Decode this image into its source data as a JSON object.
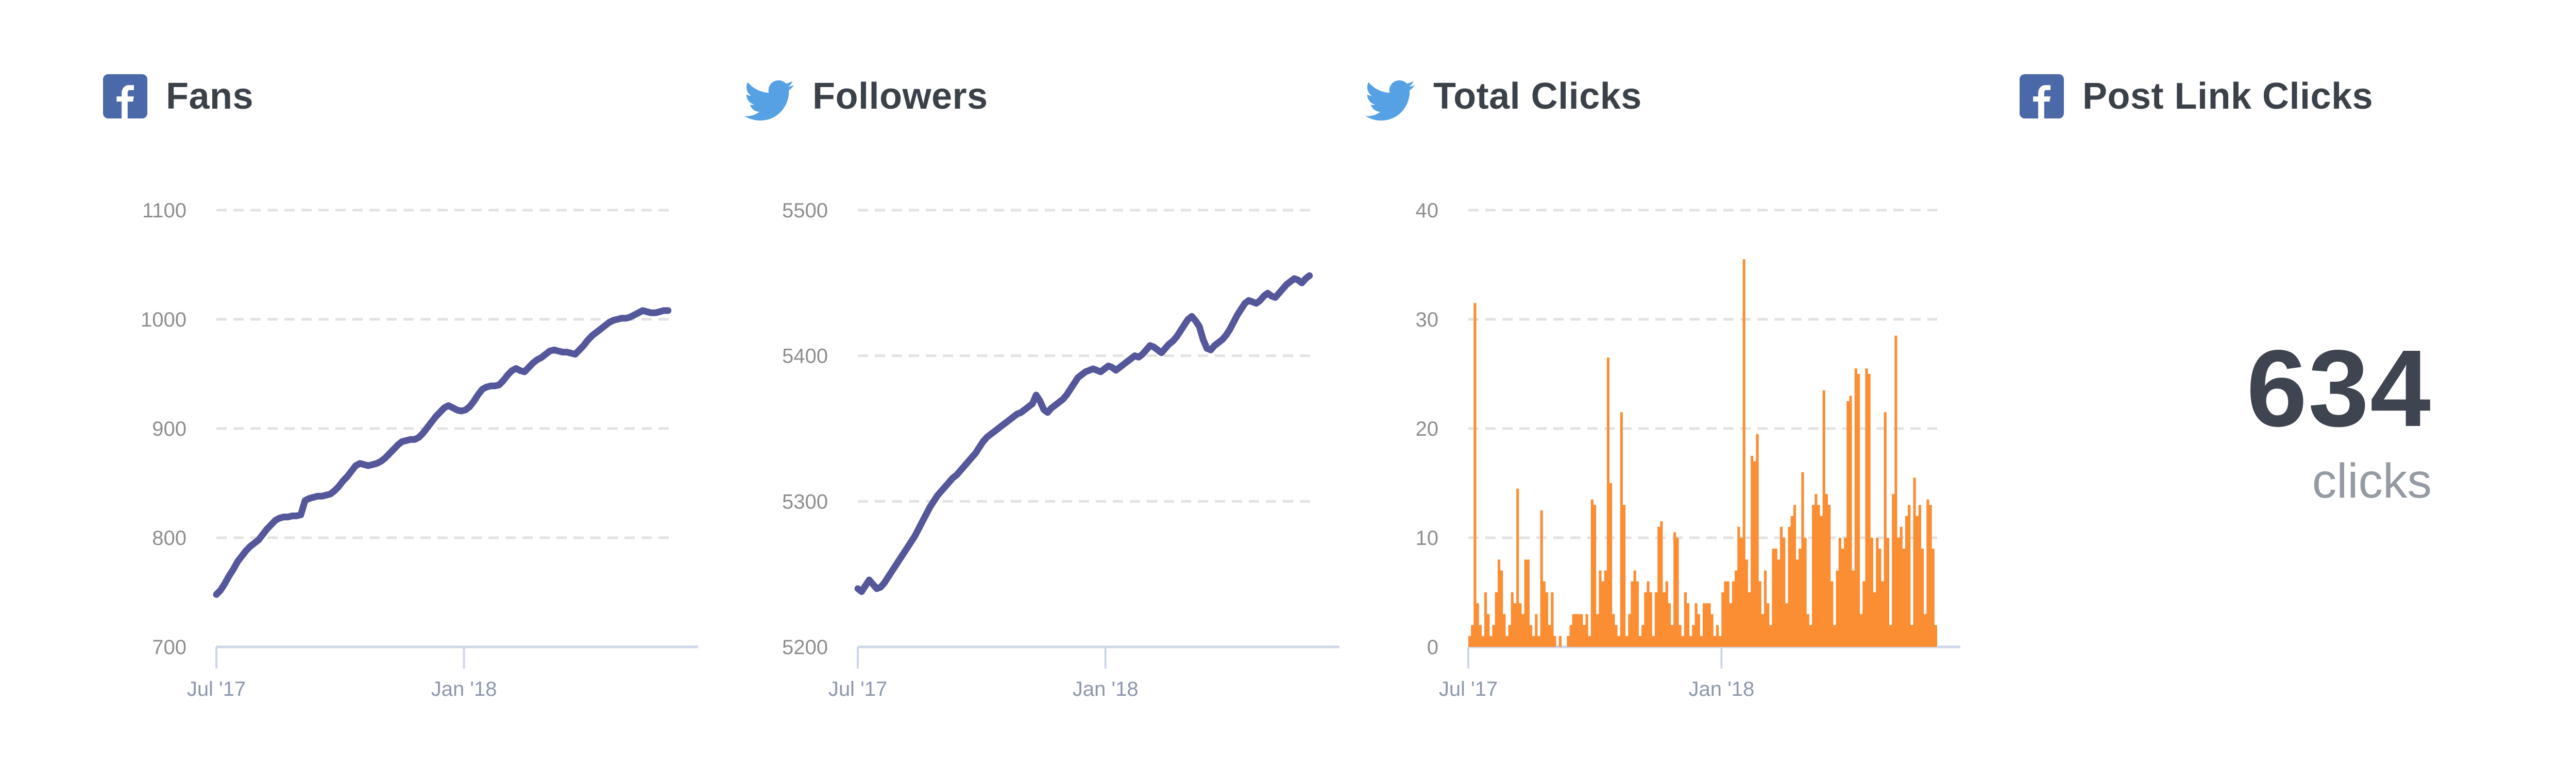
{
  "page": {
    "background": "#ffffff"
  },
  "panels": [
    {
      "title": "Fans",
      "network": "facebook",
      "chart_index": 0
    },
    {
      "title": "Followers",
      "network": "twitter",
      "chart_index": 1
    },
    {
      "title": "Total Clicks",
      "network": "twitter",
      "chart_index": 2
    },
    {
      "title": "Post Link Clicks",
      "network": "facebook",
      "metric": {
        "value": "634",
        "label": "clicks"
      }
    }
  ],
  "chart_data": [
    {
      "type": "line",
      "title": "Fans",
      "network": "facebook",
      "color": "#54589b",
      "ylim": [
        700,
        1100
      ],
      "yticks": [
        700,
        800,
        900,
        1000,
        1100
      ],
      "x_tick_labels": [
        "Jul '17",
        "Jan '18"
      ],
      "x_tick_positions": [
        0,
        0.54
      ],
      "grid": "dashed-horizontal",
      "legend": "none",
      "values": [
        748,
        752,
        758,
        765,
        771,
        778,
        783,
        788,
        792,
        795,
        798,
        803,
        808,
        812,
        816,
        818,
        819,
        819,
        820,
        820,
        821,
        834,
        836,
        837,
        838,
        838,
        839,
        840,
        843,
        847,
        852,
        856,
        861,
        866,
        868,
        867,
        866,
        867,
        868,
        870,
        873,
        877,
        881,
        885,
        888,
        889,
        890,
        890,
        892,
        896,
        901,
        906,
        911,
        915,
        919,
        921,
        919,
        917,
        916,
        917,
        920,
        925,
        931,
        936,
        938,
        939,
        939,
        940,
        944,
        949,
        953,
        955,
        953,
        952,
        956,
        960,
        963,
        965,
        968,
        971,
        972,
        971,
        970,
        970,
        969,
        968,
        972,
        976,
        981,
        985,
        988,
        991,
        994,
        997,
        999,
        1000,
        1001,
        1001,
        1002,
        1004,
        1006,
        1008,
        1007,
        1006,
        1006,
        1007,
        1008,
        1008
      ]
    },
    {
      "type": "line",
      "title": "Followers",
      "network": "twitter",
      "color": "#54589b",
      "ylim": [
        5200,
        5500
      ],
      "yticks": [
        5200,
        5300,
        5400,
        5500
      ],
      "x_tick_labels": [
        "Jul '17",
        "Jan '18"
      ],
      "x_tick_positions": [
        0,
        0.54
      ],
      "grid": "dashed-horizontal",
      "legend": "none",
      "values": [
        5240,
        5238,
        5242,
        5246,
        5243,
        5240,
        5241,
        5244,
        5248,
        5252,
        5256,
        5260,
        5264,
        5268,
        5272,
        5276,
        5281,
        5286,
        5291,
        5296,
        5300,
        5304,
        5307,
        5310,
        5313,
        5316,
        5318,
        5321,
        5324,
        5327,
        5330,
        5333,
        5337,
        5341,
        5344,
        5346,
        5348,
        5350,
        5352,
        5354,
        5356,
        5358,
        5360,
        5361,
        5363,
        5365,
        5367,
        5373,
        5369,
        5363,
        5361,
        5364,
        5366,
        5368,
        5370,
        5373,
        5377,
        5381,
        5385,
        5387,
        5389,
        5390,
        5391,
        5390,
        5389,
        5391,
        5393,
        5392,
        5390,
        5392,
        5394,
        5396,
        5398,
        5400,
        5399,
        5401,
        5404,
        5407,
        5406,
        5404,
        5402,
        5405,
        5408,
        5410,
        5413,
        5417,
        5421,
        5425,
        5427,
        5424,
        5420,
        5411,
        5405,
        5404,
        5407,
        5409,
        5411,
        5414,
        5418,
        5423,
        5428,
        5432,
        5436,
        5438,
        5437,
        5436,
        5438,
        5441,
        5443,
        5441,
        5440,
        5443,
        5446,
        5449,
        5451,
        5453,
        5452,
        5450,
        5453,
        5455
      ]
    },
    {
      "type": "area",
      "title": "Total Clicks",
      "network": "twitter",
      "color": "#fb8d33",
      "ylim": [
        0,
        40
      ],
      "yticks": [
        0,
        10,
        20,
        30,
        40
      ],
      "x_tick_labels": [
        "Jul '17",
        "Jan '18"
      ],
      "x_tick_positions": [
        0,
        0.54
      ],
      "grid": "dashed-horizontal",
      "legend": "none",
      "values": [
        1,
        2,
        31.5,
        4,
        2,
        1,
        5,
        3,
        1,
        2,
        5,
        8,
        7,
        3,
        1,
        2,
        5,
        4,
        14.5,
        4,
        3,
        8,
        8,
        2,
        1,
        3,
        1,
        12.5,
        6,
        5,
        2,
        5,
        1,
        0,
        1,
        0,
        0,
        1,
        2,
        3,
        3,
        3,
        3,
        2,
        3,
        1,
        13.5,
        13,
        3,
        7,
        6,
        7,
        26.5,
        15,
        3,
        2,
        1,
        21.5,
        13,
        1,
        3,
        6,
        7,
        6,
        1,
        2,
        5,
        6,
        5,
        1,
        5,
        11,
        11.5,
        5,
        6,
        4,
        2,
        10.5,
        10,
        2,
        1,
        5,
        4,
        1,
        2,
        4,
        3,
        1,
        4,
        4,
        4,
        3,
        1,
        2,
        1,
        5,
        6,
        6,
        4,
        6,
        7,
        11,
        10,
        35.5,
        8,
        5,
        17.5,
        17,
        19.5,
        6,
        3,
        7,
        4,
        2,
        9,
        9,
        8,
        11,
        10,
        4,
        11,
        12,
        13,
        8,
        9,
        16,
        10,
        3,
        2,
        13,
        14,
        13,
        12,
        23.5,
        14,
        13,
        6,
        2,
        7,
        10,
        9,
        10,
        22.5,
        23,
        7,
        25.5,
        25,
        3,
        6,
        25.5,
        25,
        10,
        5,
        10,
        9,
        6,
        21.5,
        10,
        2,
        14,
        28.5,
        10,
        11,
        9,
        12,
        13,
        2,
        15.5,
        12,
        13,
        9,
        3,
        13.5,
        13,
        9,
        2
      ]
    },
    {
      "type": "metric",
      "title": "Post Link Clicks",
      "network": "facebook",
      "value": "634",
      "label": "clicks"
    }
  ],
  "colors": {
    "facebook_blue": "#4b69a9",
    "twitter_blue": "#55a1e3",
    "line_indigo": "#54589b",
    "area_orange": "#fb8d33",
    "title_text": "#3a4149",
    "y_tick_text": "#8e8e8e",
    "x_tick_text": "#8c97ad",
    "axis_line": "#cdd6e9",
    "gridline": "#e2e2e2",
    "metric_number": "#3e4550",
    "metric_label": "#949ba3"
  }
}
